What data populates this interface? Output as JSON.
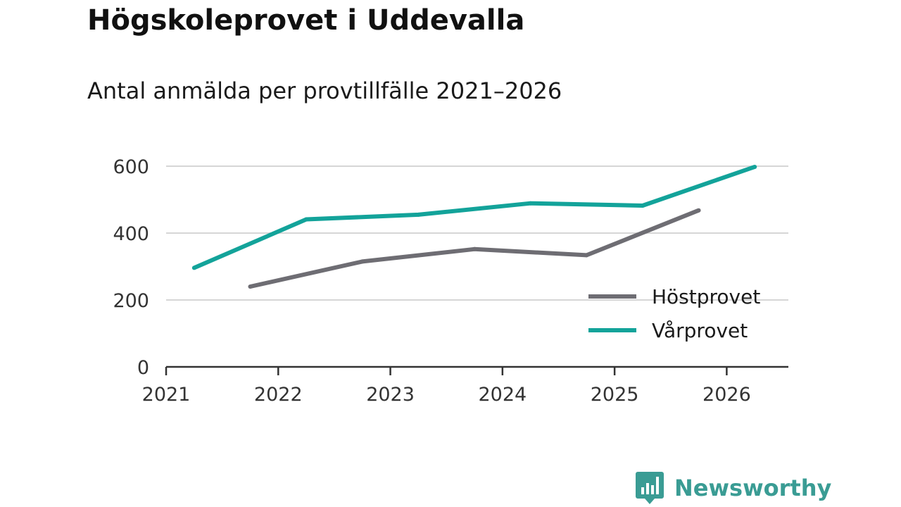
{
  "chart_data": {
    "type": "line",
    "title": "Högskoleprovet i Uddevalla",
    "subtitle": "Antal anmälda per provtillfälle 2021–2026",
    "xlabel": "",
    "ylabel": "",
    "xlim": [
      2021,
      2026.55
    ],
    "ylim": [
      0,
      600
    ],
    "x_ticks": [
      2021,
      2022,
      2023,
      2024,
      2025,
      2026
    ],
    "x_tick_labels": [
      "2021",
      "2022",
      "2023",
      "2024",
      "2025",
      "2026"
    ],
    "y_ticks": [
      0,
      200,
      400,
      600
    ],
    "y_tick_labels": [
      "0",
      "200",
      "400",
      "600"
    ],
    "grid": "horizontal",
    "legend_position": "bottom-right",
    "series": [
      {
        "name": "Höstprovet",
        "color": "#6e6d73",
        "x": [
          2021.75,
          2022.75,
          2023.75,
          2024.75,
          2025.75
        ],
        "values": [
          240,
          315,
          352,
          334,
          468
        ]
      },
      {
        "name": "Vårprovet",
        "color": "#13a39a",
        "x": [
          2021.25,
          2022.25,
          2023.25,
          2024.25,
          2025.25,
          2026.25
        ],
        "values": [
          296,
          441,
          455,
          489,
          482,
          598
        ]
      }
    ]
  },
  "brand": {
    "name": "Newsworthy",
    "color": "#3a9c94"
  }
}
